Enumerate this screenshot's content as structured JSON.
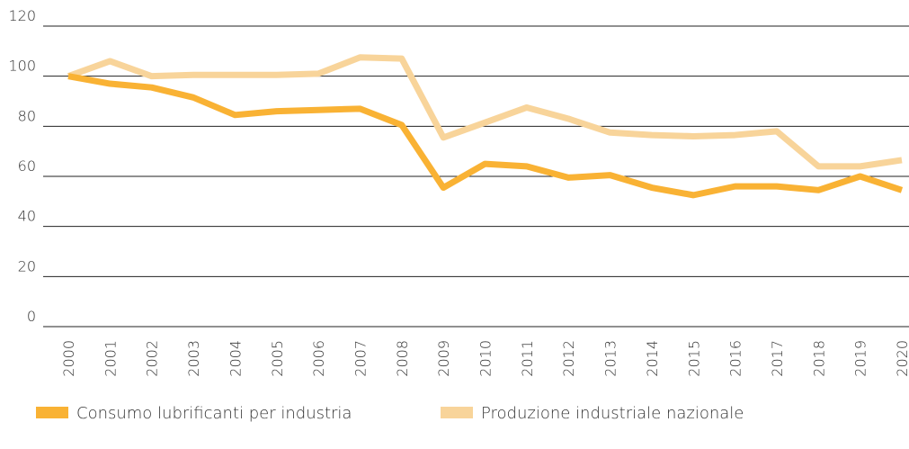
{
  "chart_data": {
    "type": "line",
    "categories": [
      "2000",
      "2001",
      "2002",
      "2003",
      "2004",
      "2005",
      "2006",
      "2007",
      "2008",
      "2009",
      "2010",
      "2011",
      "2012",
      "2013",
      "2014",
      "2015",
      "2016",
      "2017",
      "2018",
      "2019",
      "2020"
    ],
    "series": [
      {
        "name": "Consumo lubrificanti per industria",
        "color": "#f9b234",
        "values": [
          100,
          97,
          95.5,
          91.5,
          84.5,
          86,
          86.5,
          87,
          80.5,
          55.5,
          65,
          64,
          59.5,
          60.5,
          55.5,
          52.5,
          56,
          56,
          54.5,
          60,
          54.5
        ]
      },
      {
        "name": "Produzione industriale nazionale",
        "color": "#f8d49a",
        "values": [
          100,
          106,
          100,
          100.5,
          100.5,
          100.5,
          101,
          107.5,
          107,
          75.5,
          81.5,
          87.5,
          83,
          77.5,
          76.5,
          76,
          76.5,
          78,
          64,
          64,
          66.5
        ]
      }
    ],
    "ylim": [
      0,
      120
    ],
    "yticks": [
      0,
      20,
      40,
      60,
      80,
      100,
      120
    ],
    "grid": true,
    "legend": "bottom"
  }
}
